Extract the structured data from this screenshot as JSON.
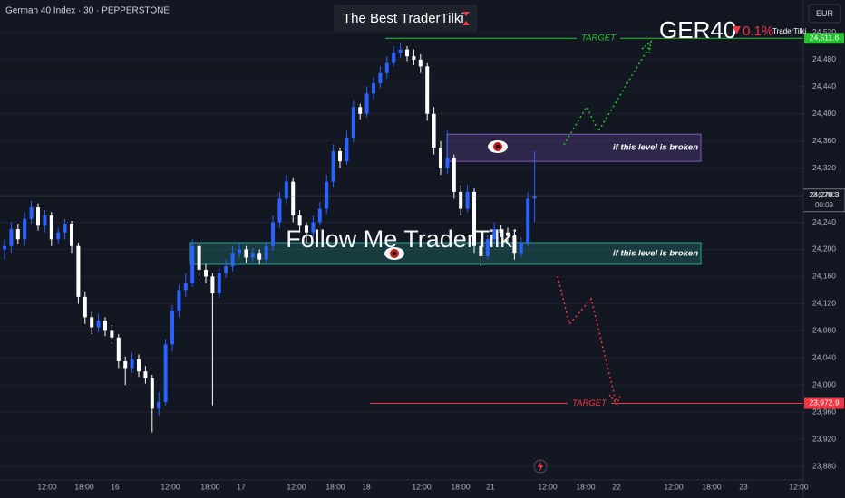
{
  "header": {
    "symbol": "German 40 Index · 30 · PEPPERSTONE",
    "currency": "EUR"
  },
  "banner": "The Best TraderTilki",
  "ticker": {
    "name": "GER40",
    "change": "0.1%",
    "author": "TraderTilki"
  },
  "watermark": "Follow Me TraderTilki",
  "chart_data": {
    "type": "candlestick",
    "x_labels": [
      "12:00",
      "18:00",
      "16",
      "12:00",
      "18:00",
      "17",
      "12:00",
      "18:00",
      "18",
      "12:00",
      "18:00",
      "21",
      "12:00",
      "18:00",
      "22",
      "12:00",
      "18:00",
      "23",
      "12:00"
    ],
    "open": [
      24200,
      24205,
      24230,
      24215,
      24245,
      24262,
      24235,
      24250,
      24215,
      24225,
      24238,
      24205,
      24130,
      24100,
      24085,
      24095,
      24080,
      24070,
      24035,
      24025,
      24038,
      24020,
      24010,
      23965,
      23975,
      24060,
      24110,
      24140,
      24150,
      24205,
      24170,
      24160,
      24135,
      24165,
      24175,
      24195,
      24200,
      24188,
      24195,
      24185,
      24205,
      24240,
      24275,
      24300,
      24250,
      24235,
      24225,
      24240,
      24260,
      24300,
      24345,
      24330,
      24365,
      24410,
      24400,
      24430,
      24445,
      24460,
      24475,
      24490,
      24495,
      24485,
      24480,
      24470,
      24400,
      24350,
      24320,
      24335,
      24285,
      24260,
      24285,
      24205,
      24190,
      24215,
      24230,
      24225,
      24220,
      24195,
      24210,
      24275
    ],
    "high": [
      24215,
      24240,
      24238,
      24255,
      24272,
      24268,
      24258,
      24255,
      24232,
      24245,
      24242,
      24210,
      24138,
      24108,
      24105,
      24100,
      24088,
      24075,
      24042,
      24048,
      24045,
      24028,
      24015,
      23990,
      24068,
      24118,
      24148,
      24165,
      24215,
      24210,
      24178,
      24165,
      24172,
      24185,
      24205,
      24210,
      24205,
      24202,
      24200,
      24212,
      24250,
      24285,
      24310,
      24305,
      24258,
      24240,
      24250,
      24270,
      24310,
      24355,
      24350,
      24375,
      24420,
      24415,
      24440,
      24455,
      24470,
      24485,
      24500,
      24505,
      24500,
      24495,
      24488,
      24475,
      24410,
      24360,
      24375,
      24340,
      24295,
      24295,
      24290,
      24215,
      24222,
      24240,
      24236,
      24232,
      24226,
      24218,
      24285,
      24345
    ],
    "low": [
      24185,
      24195,
      24208,
      24205,
      24238,
      24228,
      24225,
      24205,
      24208,
      24215,
      24195,
      24120,
      24090,
      24075,
      24078,
      24072,
      24060,
      24025,
      24000,
      24018,
      24012,
      24002,
      23930,
      23955,
      23970,
      24050,
      24100,
      24130,
      24145,
      24160,
      24150,
      23970,
      24128,
      24158,
      24168,
      24188,
      24180,
      24182,
      24178,
      24180,
      24198,
      24232,
      24268,
      24240,
      24225,
      24210,
      24218,
      24235,
      24252,
      24292,
      24320,
      24325,
      24358,
      24392,
      24395,
      24422,
      24438,
      24452,
      24470,
      24482,
      24478,
      24472,
      24460,
      24390,
      24340,
      24310,
      24312,
      24275,
      24250,
      24255,
      24195,
      24175,
      24185,
      24208,
      24218,
      24212,
      24185,
      24188,
      24205,
      24240
    ],
    "close": [
      24205,
      24230,
      24215,
      24245,
      24262,
      24235,
      24250,
      24215,
      24225,
      24238,
      24205,
      24130,
      24100,
      24085,
      24095,
      24080,
      24070,
      24035,
      24025,
      24038,
      24020,
      24010,
      23965,
      23975,
      24060,
      24110,
      24140,
      24150,
      24205,
      24170,
      24160,
      24135,
      24165,
      24175,
      24195,
      24200,
      24188,
      24195,
      24185,
      24205,
      24240,
      24275,
      24300,
      24250,
      24235,
      24225,
      24240,
      24260,
      24300,
      24345,
      24330,
      24365,
      24410,
      24400,
      24430,
      24445,
      24460,
      24475,
      24490,
      24495,
      24485,
      24480,
      24470,
      24400,
      24350,
      24320,
      24335,
      24285,
      24260,
      24285,
      24205,
      24190,
      24215,
      24230,
      24225,
      24220,
      24195,
      24210,
      24275,
      24278.3
    ],
    "up_color": "#2962ff",
    "down_color": "#ffffff",
    "ylim": [
      23860,
      24568
    ],
    "yticks": [
      {
        "value": 23880,
        "label": "23,880"
      },
      {
        "value": 23920,
        "label": "23,920"
      },
      {
        "value": 23960,
        "label": "23,960"
      },
      {
        "value": 24000,
        "label": "24,000"
      },
      {
        "value": 24040,
        "label": "24,040"
      },
      {
        "value": 24080,
        "label": "24,080"
      },
      {
        "value": 24120,
        "label": "24,120"
      },
      {
        "value": 24160,
        "label": "24,160"
      },
      {
        "value": 24200,
        "label": "24,200"
      },
      {
        "value": 24240,
        "label": "24,240"
      },
      {
        "value": 24280,
        "label": "24,280"
      },
      {
        "value": 24320,
        "label": "24,320"
      },
      {
        "value": 24360,
        "label": "24,360"
      },
      {
        "value": 24400,
        "label": "24,400"
      },
      {
        "value": 24440,
        "label": "24,440"
      },
      {
        "value": 24480,
        "label": "24,480"
      },
      {
        "value": 24520,
        "label": "24,520"
      }
    ],
    "grid": true,
    "levels": [
      {
        "name": "TARGET",
        "value": 24511.6,
        "label": "24,511.6",
        "color": "#22c52e"
      },
      {
        "name": "TARGET",
        "value": 23972.9,
        "label": "23,972.9",
        "color": "#f23645"
      }
    ],
    "last_price": {
      "value": 24278.3,
      "label": "24,278.3",
      "countdown": "00:09"
    },
    "zones": [
      {
        "top": 24370,
        "bottom": 24330,
        "label": "if this level is broken",
        "color": "#7e57c2"
      },
      {
        "top": 24210,
        "bottom": 24178,
        "label": "if this level is broken",
        "color": "#26a69a"
      }
    ]
  }
}
